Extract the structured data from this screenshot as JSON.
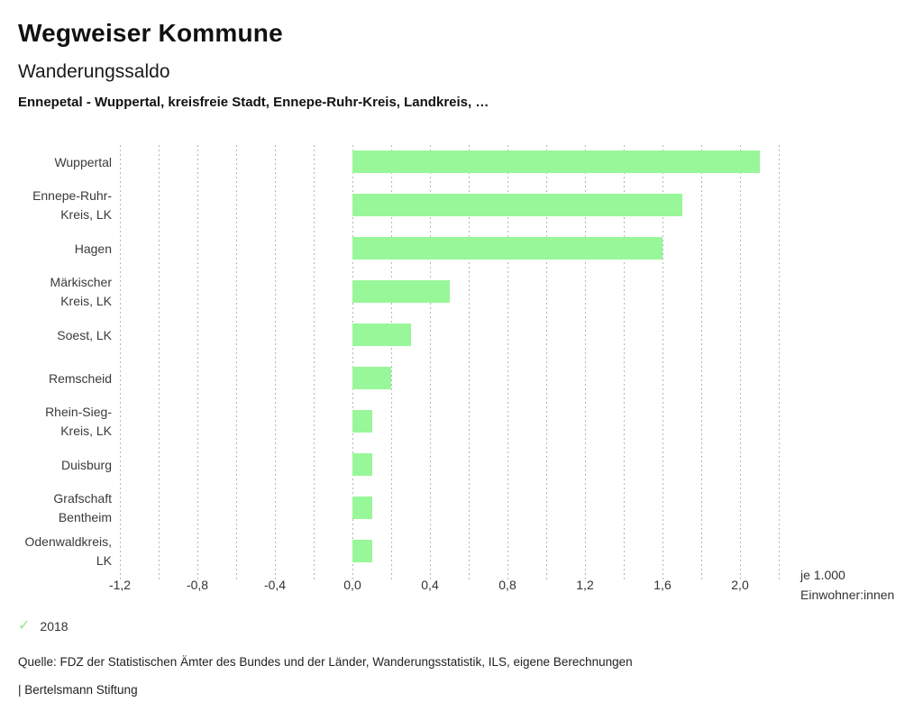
{
  "header": {
    "title": "Wegweiser Kommune",
    "subtitle": "Wanderungssaldo",
    "selection": "Ennepetal - Wuppertal, kreisfreie Stadt, Ennepe-Ruhr-Kreis, Landkreis, …"
  },
  "chart_data": {
    "type": "bar",
    "orientation": "horizontal",
    "title": "Wanderungssaldo",
    "categories": [
      "Wuppertal",
      "Ennepe-Ruhr-Kreis, LK",
      "Hagen",
      "Märkischer Kreis, LK",
      "Soest, LK",
      "Remscheid",
      "Rhein-Sieg-Kreis, LK",
      "Duisburg",
      "Grafschaft Bentheim",
      "Odenwaldkreis, LK"
    ],
    "category_label_lines": [
      [
        "Wuppertal"
      ],
      [
        "Ennepe-Ruhr-",
        "Kreis, LK"
      ],
      [
        "Hagen"
      ],
      [
        "Märkischer",
        "Kreis, LK"
      ],
      [
        "Soest, LK"
      ],
      [
        "Remscheid"
      ],
      [
        "Rhein-Sieg-",
        "Kreis, LK"
      ],
      [
        "Duisburg"
      ],
      [
        "Grafschaft",
        "Bentheim"
      ],
      [
        "Odenwaldkreis,",
        "LK"
      ]
    ],
    "series": [
      {
        "name": "2018",
        "values": [
          2.1,
          1.7,
          1.6,
          0.5,
          0.3,
          0.2,
          0.1,
          0.1,
          0.1,
          0.1
        ]
      }
    ],
    "xlim": [
      -1.2,
      2.2
    ],
    "gridline_step": 0.2,
    "grid": true,
    "x_major_ticks": [
      -1.2,
      -0.8,
      -0.4,
      0.0,
      0.4,
      0.8,
      1.2,
      1.6,
      2.0
    ],
    "x_tick_labels": [
      "-1,2",
      "-0,8",
      "-0,4",
      "0,0",
      "0,4",
      "0,8",
      "1,2",
      "1,6",
      "2,0"
    ],
    "unit_label": [
      "je 1.000",
      "Einwohner:innen"
    ],
    "bar_color": "#98f798",
    "legend_position": "bottom-left"
  },
  "legend": {
    "year": "2018",
    "check_icon": "✓",
    "check_color": "#8fe88f"
  },
  "footer": {
    "source": "Quelle: FDZ der Statistischen Ämter des Bundes und der Länder, Wanderungsstatistik, ILS, eigene Berechnungen",
    "branding": "| Bertelsmann Stiftung"
  },
  "colors": {
    "bar": "#98f798",
    "grid": "#b6b6b6",
    "title_text": "#111111",
    "label_text": "#3a3a3a"
  }
}
